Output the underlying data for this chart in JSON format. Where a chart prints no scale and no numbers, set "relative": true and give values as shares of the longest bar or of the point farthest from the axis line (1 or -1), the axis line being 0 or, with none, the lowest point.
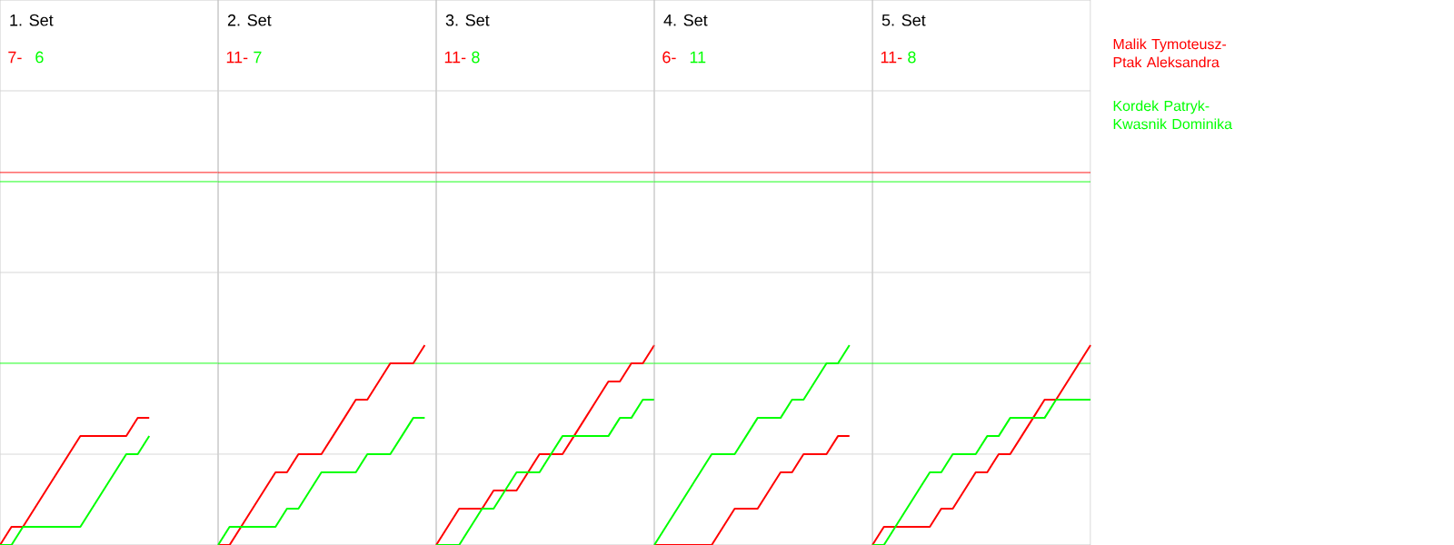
{
  "chart_data": [
    {
      "type": "line",
      "relative": true,
      "title": "1. Set",
      "annotations": [
        "7-",
        "6"
      ],
      "categories": [
        null,
        null,
        null,
        null,
        null,
        null,
        null,
        null,
        null,
        null,
        null,
        null,
        null,
        null
      ],
      "ref_lines": [
        {
          "axis": "y",
          "value": 0.714,
          "color": "#d4d4d4"
        },
        {
          "axis": "y",
          "value": 2.143,
          "color": "#d4d4d4"
        },
        {
          "axis": "y",
          "value": 3.571,
          "color": "#d4d4d4"
        },
        {
          "axis": "y",
          "value": 2.929,
          "color": "#ff0000"
        },
        {
          "axis": "y",
          "value": 2.857,
          "color": "#00ff00"
        },
        {
          "axis": "y",
          "value": 1.429,
          "color": "#00ff00"
        }
      ],
      "series": [
        {
          "color": "#ff0000",
          "values": [
            0,
            0.143,
            0.143,
            0.286,
            0.429,
            0.571,
            0.714,
            0.857,
            0.857,
            0.857,
            0.857,
            0.857,
            1,
            1
          ]
        },
        {
          "color": "#00ff00",
          "values": [
            0,
            0,
            0.143,
            0.143,
            0.143,
            0.143,
            0.143,
            0.143,
            0.286,
            0.429,
            0.571,
            0.714,
            0.714,
            0.857
          ]
        }
      ]
    },
    {
      "type": "line",
      "relative": true,
      "title": "2. Set",
      "annotations": [
        "11-",
        "7"
      ],
      "categories": [
        null,
        null,
        null,
        null,
        null,
        null,
        null,
        null,
        null,
        null,
        null,
        null,
        null,
        null,
        null,
        null,
        null,
        null,
        null
      ],
      "ref_lines": [
        {
          "axis": "y",
          "value": 0.455,
          "color": "#d4d4d4"
        },
        {
          "axis": "y",
          "value": 1.364,
          "color": "#d4d4d4"
        },
        {
          "axis": "y",
          "value": 2.273,
          "color": "#d4d4d4"
        },
        {
          "axis": "y",
          "value": 1.864,
          "color": "#ff0000"
        },
        {
          "axis": "y",
          "value": 1.818,
          "color": "#00ff00"
        },
        {
          "axis": "y",
          "value": 0.909,
          "color": "#00ff00"
        }
      ],
      "series": [
        {
          "color": "#ff0000",
          "values": [
            0,
            0,
            0.091,
            0.182,
            0.273,
            0.364,
            0.364,
            0.455,
            0.455,
            0.455,
            0.545,
            0.636,
            0.727,
            0.727,
            0.818,
            0.909,
            0.909,
            0.909,
            1
          ]
        },
        {
          "color": "#00ff00",
          "values": [
            0,
            0.091,
            0.091,
            0.091,
            0.091,
            0.091,
            0.182,
            0.182,
            0.273,
            0.364,
            0.364,
            0.364,
            0.364,
            0.455,
            0.455,
            0.455,
            0.545,
            0.636,
            0.636
          ]
        }
      ]
    },
    {
      "type": "line",
      "relative": true,
      "title": "3. Set",
      "annotations": [
        "11-",
        "8"
      ],
      "categories": [
        null,
        null,
        null,
        null,
        null,
        null,
        null,
        null,
        null,
        null,
        null,
        null,
        null,
        null,
        null,
        null,
        null,
        null,
        null,
        null
      ],
      "ref_lines": [
        {
          "axis": "y",
          "value": 0.455,
          "color": "#d4d4d4"
        },
        {
          "axis": "y",
          "value": 1.364,
          "color": "#d4d4d4"
        },
        {
          "axis": "y",
          "value": 2.273,
          "color": "#d4d4d4"
        },
        {
          "axis": "y",
          "value": 1.864,
          "color": "#ff0000"
        },
        {
          "axis": "y",
          "value": 1.818,
          "color": "#00ff00"
        },
        {
          "axis": "y",
          "value": 0.909,
          "color": "#00ff00"
        }
      ],
      "series": [
        {
          "color": "#ff0000",
          "values": [
            0,
            0.091,
            0.182,
            0.182,
            0.182,
            0.273,
            0.273,
            0.273,
            0.364,
            0.455,
            0.455,
            0.455,
            0.545,
            0.636,
            0.727,
            0.818,
            0.818,
            0.909,
            0.909,
            1
          ]
        },
        {
          "color": "#00ff00",
          "values": [
            0,
            0,
            0,
            0.091,
            0.182,
            0.182,
            0.273,
            0.364,
            0.364,
            0.364,
            0.455,
            0.545,
            0.545,
            0.545,
            0.545,
            0.545,
            0.636,
            0.636,
            0.727,
            0.727
          ]
        }
      ]
    },
    {
      "type": "line",
      "relative": true,
      "title": "4. Set",
      "annotations": [
        "6-",
        "11"
      ],
      "categories": [
        null,
        null,
        null,
        null,
        null,
        null,
        null,
        null,
        null,
        null,
        null,
        null,
        null,
        null,
        null,
        null,
        null,
        null
      ],
      "ref_lines": [
        {
          "axis": "y",
          "value": 0.455,
          "color": "#d4d4d4"
        },
        {
          "axis": "y",
          "value": 1.364,
          "color": "#d4d4d4"
        },
        {
          "axis": "y",
          "value": 2.273,
          "color": "#d4d4d4"
        },
        {
          "axis": "y",
          "value": 1.864,
          "color": "#ff0000"
        },
        {
          "axis": "y",
          "value": 1.818,
          "color": "#00ff00"
        },
        {
          "axis": "y",
          "value": 0.909,
          "color": "#00ff00"
        }
      ],
      "series": [
        {
          "color": "#ff0000",
          "values": [
            0,
            0,
            0,
            0,
            0,
            0,
            0.091,
            0.182,
            0.182,
            0.182,
            0.273,
            0.364,
            0.364,
            0.455,
            0.455,
            0.455,
            0.545,
            0.545
          ]
        },
        {
          "color": "#00ff00",
          "values": [
            0,
            0.091,
            0.182,
            0.273,
            0.364,
            0.455,
            0.455,
            0.455,
            0.545,
            0.636,
            0.636,
            0.636,
            0.727,
            0.727,
            0.818,
            0.909,
            0.909,
            1
          ]
        }
      ]
    },
    {
      "type": "line",
      "relative": true,
      "title": "5. Set",
      "annotations": [
        "11-",
        "8"
      ],
      "categories": [
        null,
        null,
        null,
        null,
        null,
        null,
        null,
        null,
        null,
        null,
        null,
        null,
        null,
        null,
        null,
        null,
        null,
        null,
        null,
        null
      ],
      "ref_lines": [
        {
          "axis": "y",
          "value": 0.455,
          "color": "#d4d4d4"
        },
        {
          "axis": "y",
          "value": 1.364,
          "color": "#d4d4d4"
        },
        {
          "axis": "y",
          "value": 2.273,
          "color": "#d4d4d4"
        },
        {
          "axis": "y",
          "value": 1.864,
          "color": "#ff0000"
        },
        {
          "axis": "y",
          "value": 1.818,
          "color": "#00ff00"
        },
        {
          "axis": "y",
          "value": 0.909,
          "color": "#00ff00"
        }
      ],
      "series": [
        {
          "name": "Malik Tymoteusz-Ptak Aleksandra",
          "color": "#ff0000",
          "values": [
            0,
            0.091,
            0.091,
            0.091,
            0.091,
            0.091,
            0.182,
            0.182,
            0.273,
            0.364,
            0.364,
            0.455,
            0.455,
            0.545,
            0.636,
            0.727,
            0.727,
            0.818,
            0.909,
            1
          ]
        },
        {
          "name": "Kordek Patryk-Kwasnik Dominika",
          "color": "#00ff00",
          "values": [
            0,
            0,
            0.091,
            0.182,
            0.273,
            0.364,
            0.364,
            0.455,
            0.455,
            0.455,
            0.545,
            0.545,
            0.636,
            0.636,
            0.636,
            0.636,
            0.727,
            0.727,
            0.727,
            0.727
          ]
        }
      ]
    }
  ]
}
